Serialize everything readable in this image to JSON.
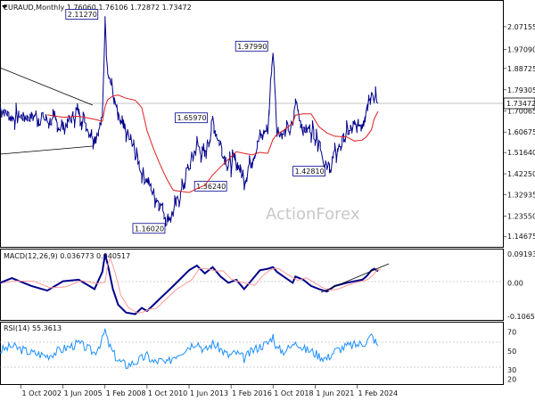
{
  "header": {
    "symbol_line": "EURAUD,Monthly  1.76060 1.76106 1.72872 1.73472"
  },
  "watermark": "ActionForex",
  "current_price_label": "1.73472",
  "macd_label": "MACD(12,26,9) 0.036773 0.040517",
  "rsi_label": "RSI(14) 55.3613",
  "colors": {
    "price": "#00008b",
    "ma": "#e02020",
    "signal": "#ff9a9a",
    "rsi": "#1e90ff",
    "grid_dotted": "#a0a0a0",
    "border": "#000000"
  },
  "chart_data": [
    {
      "type": "line",
      "panel": "price",
      "x": [
        "2001-06",
        "2002-03",
        "2003-06",
        "2004-06",
        "2005-06",
        "2006-06",
        "2007-06",
        "2007-12",
        "2008-02",
        "2008-04",
        "2008-08",
        "2008-12",
        "2009-06",
        "2010-01",
        "2010-06",
        "2010-10",
        "2011-03",
        "2011-08",
        "2012-01",
        "2012-06",
        "2013-06",
        "2013-12",
        "2014-06",
        "2014-12",
        "2015-06",
        "2015-12",
        "2016-06",
        "2016-12",
        "2017-06",
        "2017-12",
        "2018-06",
        "2018-10",
        "2019-01",
        "2019-06",
        "2020-01",
        "2020-03",
        "2020-09",
        "2021-03",
        "2021-09",
        "2022-03",
        "2022-09",
        "2023-06",
        "2023-12",
        "2024-06",
        "2024-09",
        "2025-01",
        "2025-03",
        "2025-06"
      ],
      "series": [
        {
          "values": [
            1.72,
            1.67,
            1.68,
            1.66,
            1.63,
            1.7,
            1.58,
            1.66,
            2.1127,
            1.9,
            1.78,
            1.66,
            1.6,
            1.52,
            1.43,
            1.4,
            1.33,
            1.3,
            1.22,
            1.25,
            1.45,
            1.55,
            1.5,
            1.65,
            1.55,
            1.46,
            1.48,
            1.4,
            1.5,
            1.58,
            1.62,
            1.9799,
            1.62,
            1.6,
            1.62,
            1.75,
            1.62,
            1.62,
            1.58,
            1.4281,
            1.5,
            1.6,
            1.62,
            1.65,
            1.72,
            1.8,
            1.76,
            1.73472
          ]
        }
      ],
      "annotations": [
        "2.11270",
        "1.97990",
        "1.65970",
        "1.36240",
        "1.42810",
        "1.16020"
      ],
      "y_ticks": [
        "2.07155",
        "1.97090",
        "1.88725",
        "1.79305",
        "1.70065",
        "1.60675",
        "1.51640",
        "1.42250",
        "1.32935",
        "1.23550",
        "1.14675"
      ],
      "x_ticks": [
        "1 Oct 2002",
        "1 Jun 2005",
        "1 Feb 2008",
        "1 Oct 2010",
        "1 Jun 2013",
        "1 Feb 2016",
        "1 Oct 2018",
        "1 Jun 2021",
        "1 Feb 2024"
      ]
    },
    {
      "type": "line",
      "panel": "macd",
      "y_ticks": [
        "0.091935",
        "0.00",
        "-0.106534"
      ]
    },
    {
      "type": "line",
      "panel": "rsi",
      "y_ticks": [
        "70",
        "50",
        "30",
        "20"
      ]
    }
  ]
}
